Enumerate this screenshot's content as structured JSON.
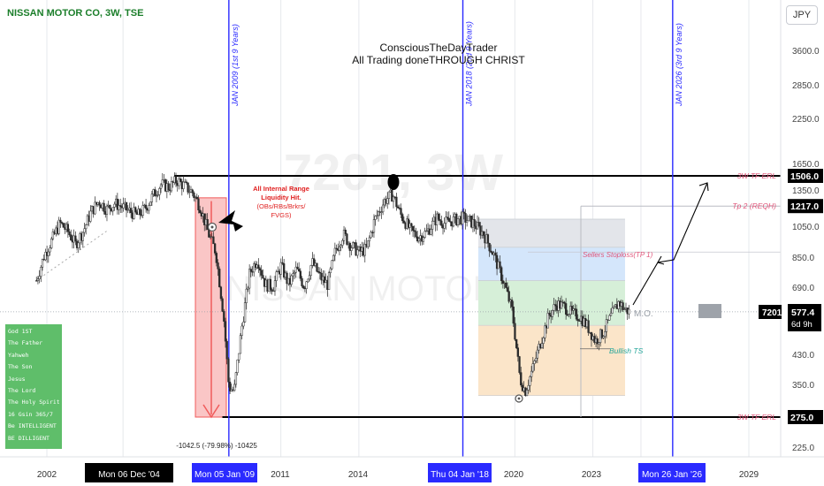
{
  "header": {
    "ticker_line": "NISSAN MOTOR CO, 3W, TSE",
    "author_line1": "ConsciousTheDayTrader",
    "author_line2": "All Trading doneTHROUGH CHRIST",
    "currency": "JPY"
  },
  "watermark": {
    "symbol": "7201, 3W",
    "name": "NISSAN MOTOR CO"
  },
  "scripture_box": {
    "lines": [
      "God 1ST",
      "The Father",
      "Yahweh",
      "The Son",
      "Jesus",
      "The Lord",
      "The Holy Spirit",
      "16 Gsin 365/7",
      "Be INTELLIGENT",
      "BE DILLIGENT"
    ],
    "color": "#5fbe6a"
  },
  "annotations": {
    "cycle_labels": [
      "JAN 2009 (1st 9 Years)",
      "JAN 2018 (2nd 9 Years)",
      "JAN 2026 (3rd 9 Years)"
    ],
    "liquidity_note": [
      "All Internal Range",
      "Liquidity Hit.",
      "(OBs/RBs/Brkrs/",
      "FVGS)"
    ],
    "measure_text": "-1042.5 (-79.98%) -10425",
    "erl_top": "3W TF ERL",
    "erl_bottom": "3W TF ERL",
    "tp2": "Tp 2 (REQH)",
    "sellers_stoploss": "Sellers Stoploss(TP 1)",
    "bullish_ts": "Bullish TS",
    "mo": "M.O."
  },
  "price_tags": {
    "ticker_code": "7201",
    "current_price": "577.4",
    "countdown": "6d 9h",
    "level_top": "1506.0",
    "level_tp2": "1217.0",
    "level_bottom": "275.0"
  },
  "colors": {
    "cycle_line": "#2a2aff",
    "red_zone": "#f05b5b",
    "annotation_red": "#e03a3a",
    "annotation_pink": "#e0557a",
    "annotation_teal": "#26a69a",
    "zone_gray": "#e3e5ea",
    "zone_blue": "#d4e6fb",
    "zone_green": "#d6efd8",
    "zone_orange": "#fbe5c9"
  },
  "chart_data": {
    "type": "candlestick",
    "title": "NISSAN MOTOR CO, 3W, TSE",
    "y_scale": "log",
    "y_axis_labels": [
      "3600.0",
      "2850.0",
      "2250.0",
      "1650.0",
      "1350.0",
      "1050.0",
      "850.0",
      "690.0",
      "430.0",
      "350.0",
      "225.0"
    ],
    "x_axis_labels": [
      "2002",
      "2011",
      "2014",
      "2020",
      "2023",
      "2029"
    ],
    "x_axis_highlights": [
      "Mon 06 Dec '04",
      "Mon 05 Jan '09",
      "Thu 04 Jan '18",
      "Mon 26 Jan '26"
    ],
    "x_range_years": [
      2001.4,
      2031.2
    ],
    "y_range": [
      205,
      4400
    ],
    "series": [
      {
        "points": [
          [
            2001.6,
            720
          ],
          [
            2001.9,
            860
          ],
          [
            2002.2,
            960
          ],
          [
            2002.5,
            1080
          ],
          [
            2002.8,
            1020
          ],
          [
            2003.1,
            930
          ],
          [
            2003.4,
            1020
          ],
          [
            2003.7,
            1170
          ],
          [
            2004.0,
            1260
          ],
          [
            2004.3,
            1190
          ],
          [
            2004.6,
            1240
          ],
          [
            2004.9,
            1210
          ],
          [
            2005.2,
            1170
          ],
          [
            2005.5,
            1140
          ],
          [
            2005.8,
            1200
          ],
          [
            2006.1,
            1320
          ],
          [
            2006.4,
            1420
          ],
          [
            2006.7,
            1390
          ],
          [
            2007.0,
            1460
          ],
          [
            2007.3,
            1400
          ],
          [
            2007.6,
            1340
          ],
          [
            2007.9,
            1210
          ],
          [
            2008.2,
            1010
          ],
          [
            2008.5,
            880
          ],
          [
            2008.8,
            560
          ],
          [
            2009.0,
            340
          ],
          [
            2009.2,
            330
          ],
          [
            2009.5,
            520
          ],
          [
            2009.8,
            760
          ],
          [
            2010.1,
            840
          ],
          [
            2010.4,
            700
          ],
          [
            2010.7,
            690
          ],
          [
            2011.0,
            800
          ],
          [
            2011.3,
            700
          ],
          [
            2011.6,
            780
          ],
          [
            2011.9,
            690
          ],
          [
            2012.2,
            820
          ],
          [
            2012.5,
            740
          ],
          [
            2012.8,
            700
          ],
          [
            2013.1,
            890
          ],
          [
            2013.4,
            1000
          ],
          [
            2013.7,
            920
          ],
          [
            2014.0,
            880
          ],
          [
            2014.3,
            900
          ],
          [
            2014.6,
            1100
          ],
          [
            2015.0,
            1270
          ],
          [
            2015.3,
            1320
          ],
          [
            2015.6,
            1150
          ],
          [
            2016.0,
            1020
          ],
          [
            2016.3,
            980
          ],
          [
            2016.6,
            1010
          ],
          [
            2017.0,
            1120
          ],
          [
            2017.3,
            1080
          ],
          [
            2017.6,
            1100
          ],
          [
            2018.0,
            1120
          ],
          [
            2018.4,
            1080
          ],
          [
            2018.8,
            1000
          ],
          [
            2019.2,
            860
          ],
          [
            2019.6,
            700
          ],
          [
            2019.9,
            580
          ],
          [
            2020.2,
            360
          ],
          [
            2020.4,
            330
          ],
          [
            2020.7,
            390
          ],
          [
            2021.0,
            470
          ],
          [
            2021.3,
            560
          ],
          [
            2021.6,
            610
          ],
          [
            2021.9,
            600
          ],
          [
            2022.2,
            570
          ],
          [
            2022.5,
            560
          ],
          [
            2022.8,
            520
          ],
          [
            2023.1,
            470
          ],
          [
            2023.4,
            500
          ],
          [
            2023.7,
            560
          ],
          [
            2024.0,
            620
          ],
          [
            2024.2,
            590
          ],
          [
            2024.4,
            577.4
          ]
        ]
      }
    ],
    "horizontal_levels": [
      1506.0,
      1217.0,
      275.0
    ],
    "current_price": 577.4
  }
}
